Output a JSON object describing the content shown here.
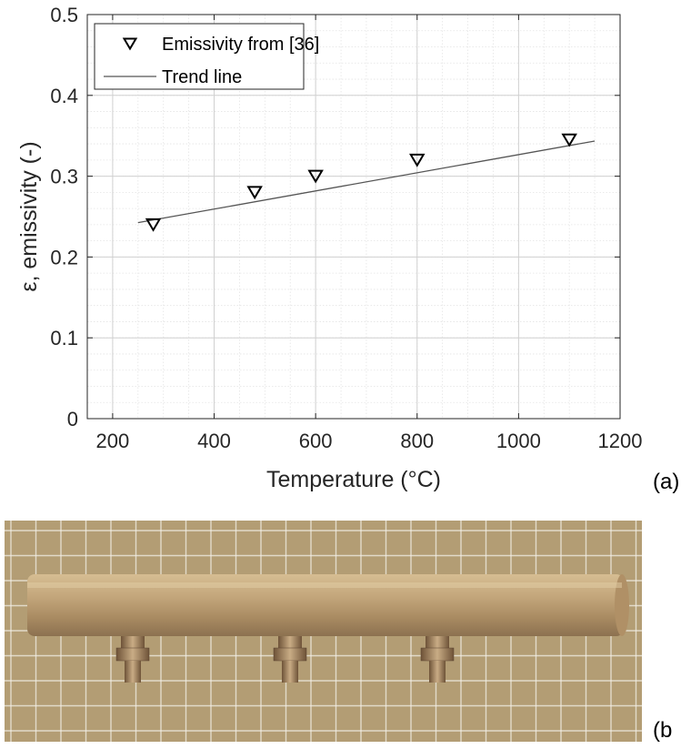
{
  "chart_data": {
    "type": "scatter",
    "title": "",
    "xlabel": "Temperature (°C)",
    "ylabel": "ε, emissivity (-)",
    "xlim": [
      150,
      1200
    ],
    "ylim": [
      0,
      0.5
    ],
    "x_ticks": [
      200,
      400,
      600,
      800,
      1000,
      1200
    ],
    "y_ticks": [
      0,
      0.1,
      0.2,
      0.3,
      0.4,
      0.5
    ],
    "grid": true,
    "minor_grid": true,
    "legend_position": "top-left",
    "series": [
      {
        "name": "Emissivity from [36]",
        "marker": "triangle-down",
        "color": "#000000",
        "x": [
          280,
          480,
          600,
          800,
          1100
        ],
        "y": [
          0.24,
          0.28,
          0.3,
          0.32,
          0.345
        ]
      },
      {
        "name": "Trend line",
        "type": "line",
        "color": "#555555",
        "x": [
          250,
          1150
        ],
        "y": [
          0.2425,
          0.3435
        ]
      }
    ]
  },
  "panels": {
    "a_label": "(a)",
    "b_label": "(b"
  },
  "photo": {
    "background_color": "#b39d74",
    "grid_color": "#f2efe6",
    "tube_color": "#c0a278",
    "fitting_color": "#9b7d5a"
  }
}
